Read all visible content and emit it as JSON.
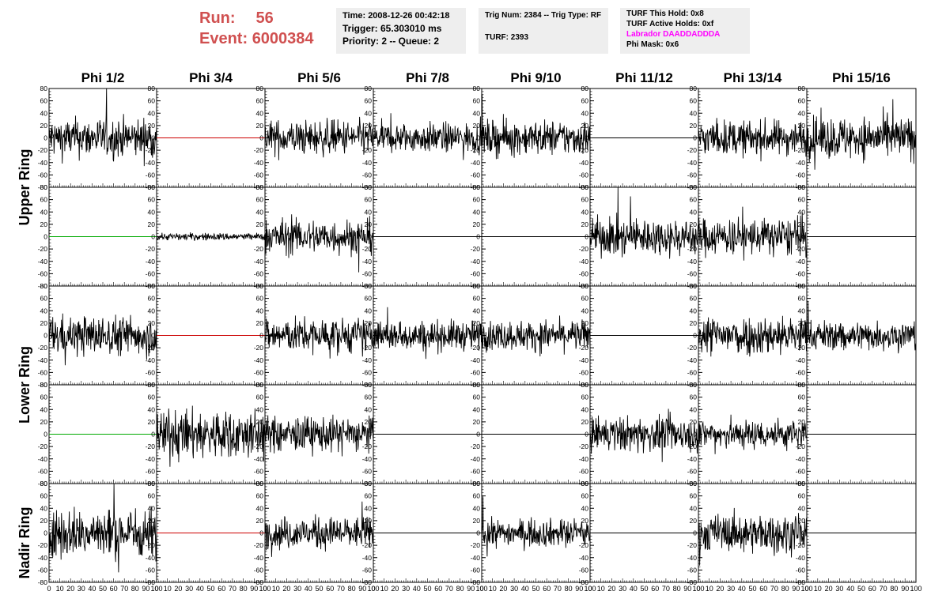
{
  "header": {
    "run_label": "Run:",
    "run_value": "56",
    "event_label": "Event:",
    "event_value": "6000384",
    "time_line": "Time: 2008-12-26 00:42:18",
    "trigger_line": "Trigger: 65.303010 ms",
    "priority_line": "Priority: 2 -- Queue: 2",
    "trig_line": "Trig Num: 2384 -- Trig Type: RF",
    "turf_line": "TURF: 2393",
    "hold_line": "TURF This Hold: 0x8",
    "active_holds_line": "TURF Active Holds: 0xf",
    "labrador_line": "Labrador DAADDADDDA",
    "phi_mask_line": "Phi Mask: 0x6"
  },
  "chart_data": {
    "type": "line",
    "columns": [
      "Phi 1/2",
      "Phi 3/4",
      "Phi 5/6",
      "Phi 7/8",
      "Phi 9/10",
      "Phi 11/12",
      "Phi 13/14",
      "Phi 15/16"
    ],
    "ring_labels": [
      "Upper Ring",
      "Lower Ring",
      "Nadir Ring"
    ],
    "ylim": [
      -80,
      80
    ],
    "y_ticks": [
      "-80",
      "-60",
      "-40",
      "-20",
      "0",
      "20",
      "40",
      "60",
      "80"
    ],
    "xlim": [
      0,
      100
    ],
    "x_ticks": [
      "0",
      "10",
      "20",
      "30",
      "40",
      "50",
      "60",
      "70",
      "80",
      "90",
      "100"
    ],
    "colors": {
      "waveform": "#000000",
      "flat_red": "#cc0000",
      "flat_green": "#00aa00"
    },
    "panels": [
      [
        {
          "style": "noise",
          "amp": 16,
          "color": "#000000"
        },
        {
          "style": "flat",
          "color": "#cc0000"
        },
        {
          "style": "noise",
          "amp": 14,
          "color": "#000000"
        },
        {
          "style": "noise",
          "amp": 12,
          "color": "#000000"
        },
        {
          "style": "noise",
          "amp": 14,
          "color": "#000000"
        },
        {
          "style": "flat",
          "color": "#000000"
        },
        {
          "style": "noise",
          "amp": 14,
          "color": "#000000"
        },
        {
          "style": "noise",
          "amp": 17,
          "color": "#000000"
        }
      ],
      [
        {
          "style": "flat",
          "color": "#00aa00"
        },
        {
          "style": "noise",
          "amp": 3,
          "color": "#000000"
        },
        {
          "style": "noise",
          "amp": 14,
          "color": "#000000"
        },
        {
          "style": "flat",
          "color": "#000000"
        },
        {
          "style": "flat",
          "color": "#000000"
        },
        {
          "style": "noise",
          "amp": 15,
          "color": "#000000"
        },
        {
          "style": "noise",
          "amp": 15,
          "color": "#000000"
        },
        {
          "style": "flat",
          "color": "#000000"
        }
      ],
      [
        {
          "style": "noise",
          "amp": 16,
          "color": "#000000"
        },
        {
          "style": "flat",
          "color": "#cc0000"
        },
        {
          "style": "noise",
          "amp": 14,
          "color": "#000000"
        },
        {
          "style": "noise",
          "amp": 12,
          "color": "#000000"
        },
        {
          "style": "noise",
          "amp": 12,
          "color": "#000000"
        },
        {
          "style": "flat",
          "color": "#000000"
        },
        {
          "style": "noise",
          "amp": 16,
          "color": "#000000"
        },
        {
          "style": "noise",
          "amp": 12,
          "color": "#000000"
        }
      ],
      [
        {
          "style": "flat",
          "color": "#00aa00"
        },
        {
          "style": "noise",
          "amp": 20,
          "color": "#000000"
        },
        {
          "style": "noise",
          "amp": 14,
          "color": "#000000"
        },
        {
          "style": "flat",
          "color": "#000000"
        },
        {
          "style": "flat",
          "color": "#000000"
        },
        {
          "style": "noise",
          "amp": 14,
          "color": "#000000"
        },
        {
          "style": "noise",
          "amp": 12,
          "color": "#000000"
        },
        {
          "style": "flat",
          "color": "#000000"
        }
      ],
      [
        {
          "style": "noise",
          "amp": 20,
          "color": "#000000"
        },
        {
          "style": "flat",
          "color": "#cc0000"
        },
        {
          "style": "noise",
          "amp": 13,
          "color": "#000000"
        },
        {
          "style": "flat",
          "color": "#000000"
        },
        {
          "style": "noise",
          "amp": 11,
          "color": "#000000"
        },
        {
          "style": "flat",
          "color": "#000000"
        },
        {
          "style": "noise",
          "amp": 15,
          "color": "#000000"
        },
        {
          "style": "flat",
          "color": "#000000"
        }
      ]
    ]
  }
}
